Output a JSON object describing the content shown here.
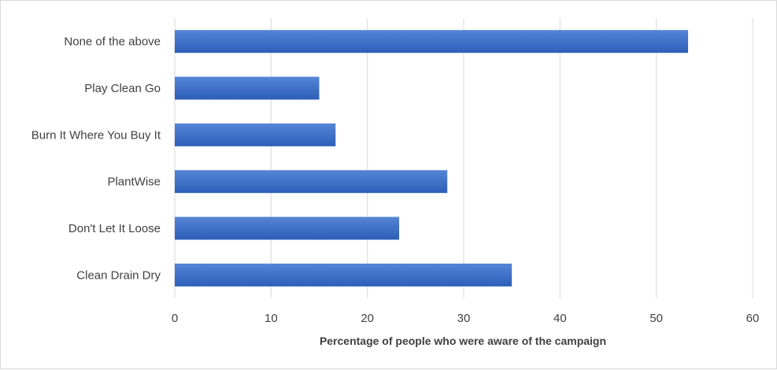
{
  "chart_data": {
    "type": "bar",
    "orientation": "horizontal",
    "title": "",
    "xlabel": "Percentage of people who were aware of the campaign",
    "ylabel": "",
    "xlim": [
      0,
      60
    ],
    "xticks": [
      0,
      10,
      20,
      30,
      40,
      50,
      60
    ],
    "grid": true,
    "legend": "none",
    "categories": [
      "None of the above",
      "Play Clean Go",
      "Burn It Where You Buy It",
      "PlantWise",
      "Don't Let It Loose",
      "Clean Drain Dry"
    ],
    "values": [
      53.3,
      15.0,
      16.7,
      28.3,
      23.3,
      35.0
    ],
    "colors": {
      "bar_top": "#5585d6",
      "bar_bottom": "#2d5fb8",
      "grid": "#d9d9d9"
    }
  }
}
